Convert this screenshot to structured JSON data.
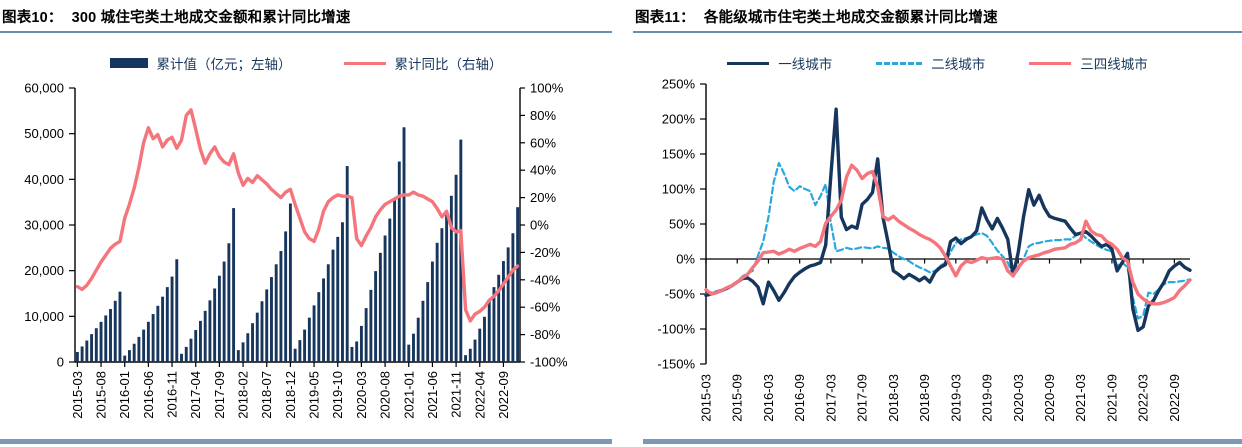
{
  "figure10": {
    "title_prefix": "图表10：",
    "title": "300 城住宅类土地成交金额和累计同比增速"
  },
  "figure11": {
    "title_prefix": "图表11：",
    "title": "各能级城市住宅类土地成交金额累计同比增速"
  },
  "colors": {
    "navy": "#17365D",
    "salmon_red": "#F4757B",
    "sky_blue": "#29A8E0",
    "footer_bar": "#7D98B5",
    "title_rule": "#6A8FAE",
    "axis": "#000000"
  },
  "chart_data": [
    {
      "type": "bar",
      "subtype": "combo-bar-line",
      "title": "图表10： 300 城住宅类土地成交金额和累计同比增速",
      "x_monthly_start": "2015-03",
      "x_monthly_end": "2022-12",
      "x_tick_every_months": 5,
      "x_tick_labels": [
        "2015-03",
        "2015-08",
        "2016-01",
        "2016-06",
        "2016-11",
        "2017-04",
        "2017-09",
        "2018-02",
        "2018-07",
        "2018-12",
        "2019-05",
        "2019-10",
        "2020-03",
        "2020-08",
        "2021-01",
        "2021-06",
        "2021-11",
        "2022-04",
        "2022-09"
      ],
      "left_axis": {
        "min": 0,
        "max": 60000,
        "step": 10000,
        "tick_labels": [
          "60,000",
          "50,000",
          "40,000",
          "30,000",
          "20,000",
          "10,000",
          "0"
        ]
      },
      "right_axis": {
        "min": -100,
        "max": 100,
        "step": 20,
        "unit": "%",
        "tick_labels": [
          "100%",
          "80%",
          "60%",
          "40%",
          "20%",
          "0%",
          "-20%",
          "-40%",
          "-60%",
          "-80%",
          "-100%"
        ]
      },
      "grid": false,
      "legend_position": "top",
      "series": [
        {
          "name": "累计值（亿元；左轴）",
          "type": "bar",
          "axis": "left",
          "color": "#17365D",
          "values": [
            2200,
            3400,
            4700,
            6100,
            7400,
            8800,
            10200,
            11600,
            13400,
            15400,
            1400,
            2600,
            4000,
            5500,
            7100,
            8800,
            10500,
            12300,
            14300,
            16400,
            18700,
            22500,
            1800,
            3300,
            5100,
            7000,
            9000,
            11200,
            13500,
            16100,
            18900,
            22000,
            26000,
            33700,
            2600,
            4300,
            6300,
            8500,
            10800,
            13300,
            15900,
            18600,
            21400,
            24300,
            28600,
            34700,
            2900,
            4800,
            7100,
            9700,
            12400,
            15300,
            18300,
            21400,
            24600,
            27400,
            30600,
            42900,
            3300,
            4500,
            7900,
            11800,
            15800,
            19900,
            23900,
            27700,
            31400,
            35600,
            43900,
            51400,
            3800,
            6200,
            9700,
            13400,
            17500,
            22000,
            26100,
            29300,
            32900,
            36400,
            41000,
            48700,
            1500,
            2900,
            4900,
            7300,
            9900,
            13700,
            16400,
            19100,
            22100,
            25100,
            28200,
            33900
          ]
        },
        {
          "name": "累计同比（右轴）",
          "type": "line",
          "axis": "right",
          "color": "#F4757B",
          "values": [
            -45,
            -47,
            -44,
            -39,
            -33,
            -27,
            -22,
            -17,
            -14,
            -12,
            5,
            15,
            27,
            42,
            60,
            71,
            63,
            66,
            57,
            62,
            64,
            56,
            62,
            80,
            84,
            70,
            55,
            45,
            52,
            57,
            50,
            46,
            44,
            52,
            38,
            29,
            34,
            31,
            36,
            33,
            30,
            26,
            23,
            20,
            24,
            26,
            15,
            5,
            -5,
            -10,
            -12,
            -3,
            10,
            17,
            20,
            22,
            21,
            21,
            20,
            -10,
            -15,
            -8,
            -2,
            6,
            11,
            15,
            17,
            19,
            21,
            22,
            22,
            24,
            22,
            21,
            19,
            17,
            12,
            6,
            10,
            -2,
            -5,
            -4,
            -62,
            -70,
            -65,
            -63,
            -60,
            -55,
            -52,
            -48,
            -43,
            -38,
            -33,
            -30
          ]
        }
      ]
    },
    {
      "type": "line",
      "title": "图表11： 各能级城市住宅类土地成交金额累计同比增速",
      "x_monthly_start": "2015-03",
      "x_monthly_end": "2022-12",
      "x_tick_every_months": 6,
      "x_tick_labels": [
        "2015-03",
        "2015-09",
        "2016-03",
        "2016-09",
        "2017-03",
        "2017-09",
        "2018-03",
        "2018-09",
        "2019-03",
        "2019-09",
        "2020-03",
        "2020-09",
        "2021-03",
        "2021-09",
        "2022-03",
        "2022-09"
      ],
      "y_axis": {
        "min": -150,
        "max": 250,
        "step": 50,
        "unit": "%",
        "tick_labels": [
          "250%",
          "200%",
          "150%",
          "100%",
          "50%",
          "0%",
          "-50%",
          "-100%",
          "-150%"
        ]
      },
      "grid": false,
      "zero_line": true,
      "legend_position": "top",
      "series": [
        {
          "name": "一线城市",
          "color": "#17365D",
          "dash": false,
          "width": 3.4,
          "values": [
            -52,
            -50,
            -48,
            -45,
            -42,
            -38,
            -33,
            -28,
            -27,
            -32,
            -40,
            -64,
            -33,
            -45,
            -59,
            -48,
            -35,
            -25,
            -19,
            -14,
            -10,
            -8,
            -5,
            20,
            120,
            214,
            60,
            42,
            47,
            44,
            78,
            85,
            95,
            143,
            60,
            23,
            -17,
            -22,
            -28,
            -22,
            -26,
            -31,
            -26,
            -33,
            -19,
            -12,
            -8,
            25,
            30,
            22,
            28,
            32,
            40,
            73,
            56,
            43,
            58,
            44,
            28,
            -24,
            10,
            60,
            99,
            77,
            91,
            73,
            61,
            58,
            56,
            54,
            44,
            35,
            37,
            39,
            33,
            25,
            18,
            21,
            14,
            -17,
            -5,
            8,
            -71,
            -102,
            -97,
            -67,
            -59,
            -45,
            -33,
            -17,
            -10,
            -5,
            -12,
            -16
          ]
        },
        {
          "name": "二线城市",
          "color": "#29A8E0",
          "dash": true,
          "width": 2.2,
          "values": [
            -50,
            -48,
            -46,
            -44,
            -41,
            -37,
            -32,
            -25,
            -20,
            -17,
            5,
            25,
            60,
            110,
            137,
            122,
            103,
            97,
            104,
            100,
            97,
            77,
            90,
            107,
            51,
            11,
            13,
            16,
            14,
            15,
            17,
            16,
            15,
            18,
            16,
            15,
            9,
            4,
            0,
            -3,
            -8,
            -12,
            -15,
            -19,
            -17,
            -10,
            -5,
            10,
            23,
            28,
            30,
            32,
            35,
            37,
            33,
            23,
            12,
            4,
            -5,
            -24,
            -15,
            0,
            18,
            22,
            23,
            25,
            26,
            27,
            27,
            28,
            28,
            33,
            37,
            30,
            25,
            20,
            16,
            13,
            11,
            -10,
            -5,
            -12,
            -55,
            -85,
            -81,
            -48,
            -50,
            -43,
            -36,
            -33,
            -33,
            -32,
            -31,
            -29
          ]
        },
        {
          "name": "三四线城市",
          "color": "#F4757B",
          "dash": false,
          "width": 3.4,
          "values": [
            -44,
            -50,
            -48,
            -45,
            -41,
            -38,
            -33,
            -27,
            -22,
            -12,
            -3,
            9,
            10,
            11,
            7,
            10,
            14,
            11,
            15,
            18,
            21,
            18,
            25,
            51,
            61,
            70,
            84,
            117,
            134,
            127,
            115,
            122,
            125,
            103,
            61,
            56,
            61,
            54,
            49,
            44,
            40,
            35,
            31,
            28,
            23,
            16,
            4,
            -10,
            -24,
            -10,
            -3,
            -5,
            -2,
            2,
            0,
            1,
            2,
            0,
            -17,
            -24,
            -12,
            -3,
            2,
            4,
            6,
            9,
            11,
            14,
            15,
            16,
            21,
            23,
            28,
            54,
            40,
            35,
            33,
            25,
            21,
            14,
            2,
            -3,
            -33,
            -50,
            -57,
            -62,
            -64,
            -64,
            -62,
            -59,
            -55,
            -45,
            -38,
            -30
          ]
        }
      ]
    }
  ]
}
